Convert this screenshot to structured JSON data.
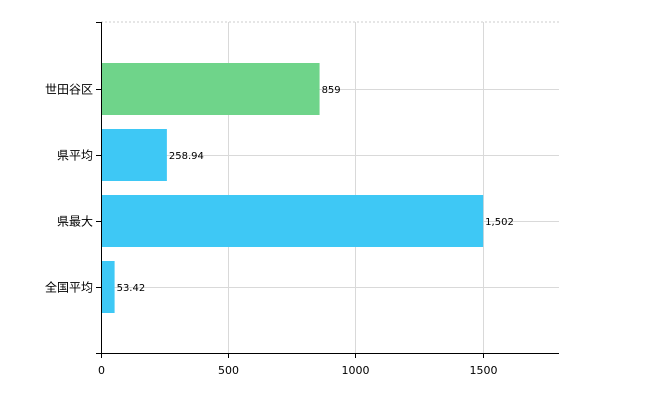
{
  "chart_data": {
    "type": "bar",
    "orientation": "horizontal",
    "categories": [
      "世田谷区",
      "県平均",
      "県最大",
      "全国平均"
    ],
    "values": [
      859,
      258.94,
      1502,
      53.42
    ],
    "value_labels": [
      "859",
      "258.94",
      "1,502",
      "53.42"
    ],
    "bar_colors": [
      "#6fd48a",
      "#3ec8f5",
      "#3ec8f5",
      "#3ec8f5"
    ],
    "xlim": [
      0,
      1800
    ],
    "xticks": [
      0,
      500,
      1000,
      1500
    ],
    "xtick_labels": [
      "0",
      "500",
      "1000",
      "1500"
    ],
    "grid": true,
    "title": "",
    "xlabel": "",
    "ylabel": ""
  }
}
